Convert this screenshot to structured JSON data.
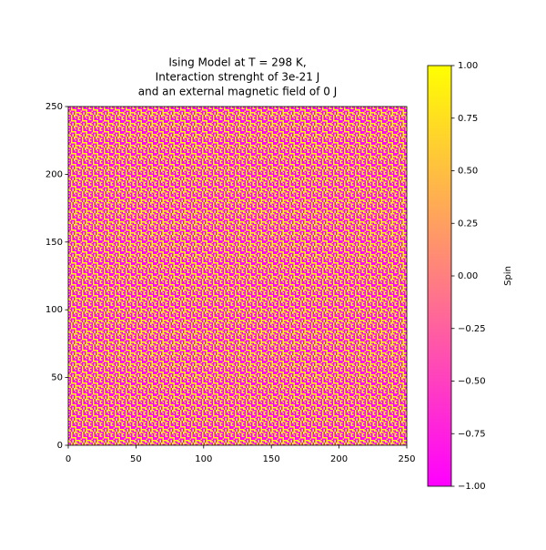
{
  "chart_data": {
    "type": "heatmap",
    "title": [
      "Ising Model at T = 298 K,",
      "Interaction strenght of 3e-21 J",
      "and an external magnetic field of 0 J"
    ],
    "xlim": [
      0,
      250
    ],
    "ylim": [
      0,
      250
    ],
    "xticks": [
      0,
      50,
      100,
      150,
      200,
      250
    ],
    "yticks": [
      0,
      50,
      100,
      150,
      200,
      250
    ],
    "colorbar": {
      "label": "Spin",
      "lim": [
        -1,
        1
      ],
      "colors": [
        "#ff00ff",
        "#ffff00"
      ],
      "ticks": [
        {
          "value": -1,
          "label": "−1.00"
        },
        {
          "value": -0.75,
          "label": "−0.75"
        },
        {
          "value": -0.5,
          "label": "−0.50"
        },
        {
          "value": -0.25,
          "label": "−0.25"
        },
        {
          "value": 0,
          "label": "0.00"
        },
        {
          "value": 0.25,
          "label": "0.25"
        },
        {
          "value": 0.5,
          "label": "0.50"
        },
        {
          "value": 0.75,
          "label": "0.75"
        },
        {
          "value": 1,
          "label": "1.00"
        }
      ]
    }
  }
}
